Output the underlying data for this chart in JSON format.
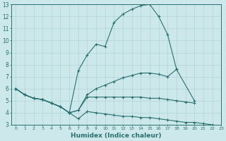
{
  "xlabel": "Humidex (Indice chaleur)",
  "ylabel": "",
  "xlim": [
    -0.5,
    23
  ],
  "ylim": [
    3,
    13
  ],
  "xticks": [
    0,
    1,
    2,
    3,
    4,
    5,
    6,
    7,
    8,
    9,
    10,
    11,
    12,
    13,
    14,
    15,
    16,
    17,
    18,
    19,
    20,
    21,
    22,
    23
  ],
  "yticks": [
    3,
    4,
    5,
    6,
    7,
    8,
    9,
    10,
    11,
    12,
    13
  ],
  "bg_color": "#cde8ea",
  "line_color": "#2a7070",
  "grid_color": "#b0d4d6",
  "series": [
    {
      "x": [
        0,
        1,
        2,
        3,
        4,
        5,
        6,
        7,
        8,
        9,
        10,
        11,
        12,
        13,
        14,
        15,
        16,
        17,
        18,
        19,
        20,
        21,
        22,
        23
      ],
      "y": [
        6,
        5.5,
        5.2,
        5.1,
        4.8,
        4.5,
        4.0,
        7.5,
        8.8,
        9.7,
        9.5,
        11.5,
        12.2,
        12.6,
        12.9,
        13.0,
        12.0,
        10.5,
        7.6,
        null,
        null,
        null,
        null,
        null
      ]
    },
    {
      "x": [
        0,
        1,
        2,
        3,
        4,
        5,
        6,
        7,
        8,
        9,
        10,
        11,
        12,
        13,
        14,
        15,
        16,
        17,
        18,
        20
      ],
      "y": [
        6,
        5.5,
        5.2,
        5.1,
        4.8,
        4.5,
        4.0,
        4.2,
        5.5,
        6.0,
        6.3,
        6.6,
        6.9,
        7.1,
        7.3,
        7.3,
        7.2,
        7.0,
        7.6,
        5.0
      ]
    },
    {
      "x": [
        0,
        1,
        2,
        3,
        4,
        5,
        6,
        7,
        8,
        9,
        10,
        11,
        12,
        13,
        14,
        15,
        16,
        17,
        18,
        19,
        20
      ],
      "y": [
        6,
        5.5,
        5.2,
        5.1,
        4.8,
        4.5,
        4.0,
        4.2,
        5.3,
        5.3,
        5.3,
        5.3,
        5.3,
        5.3,
        5.3,
        5.2,
        5.2,
        5.1,
        5.0,
        4.9,
        4.8
      ]
    },
    {
      "x": [
        0,
        1,
        2,
        3,
        4,
        5,
        6,
        7,
        8,
        9,
        10,
        11,
        12,
        13,
        14,
        15,
        16,
        17,
        18,
        19,
        20,
        21,
        22,
        23
      ],
      "y": [
        6,
        5.5,
        5.2,
        5.1,
        4.8,
        4.5,
        4.0,
        3.5,
        4.1,
        4.0,
        3.9,
        3.8,
        3.7,
        3.7,
        3.6,
        3.6,
        3.5,
        3.4,
        3.3,
        3.2,
        3.2,
        3.1,
        3.0,
        2.8
      ]
    }
  ]
}
